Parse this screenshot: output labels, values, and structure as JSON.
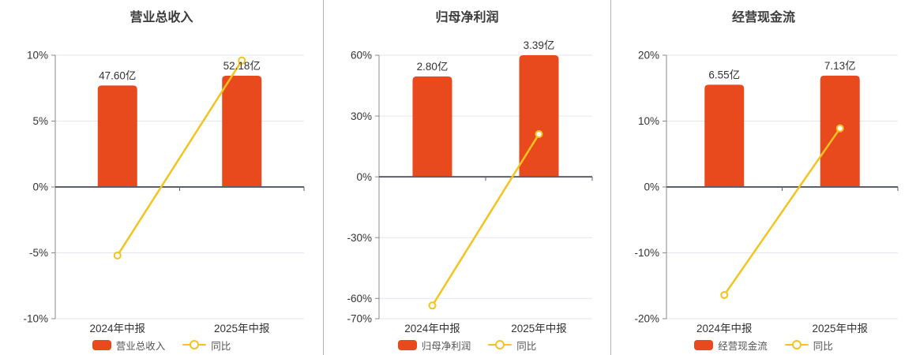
{
  "page": {
    "background": "#ffffff"
  },
  "colors": {
    "bar": "#e8491d",
    "line": "#f5c31d",
    "grid": "#e3e6ef",
    "zero_axis": "#5c6066",
    "y_axis_line": "#8a8a8a",
    "tick_text": "#333333",
    "title_text": "#3b3b3b",
    "legend_text": "#555555",
    "divider": "#b3b3b3",
    "marker_fill": "#ffffff"
  },
  "chart_data": [
    {
      "type": "bar+line",
      "title": "营业总收入",
      "categories": [
        "2024年中报",
        "2025年中报"
      ],
      "bar_series": {
        "name": "营业总收入",
        "values": [
          47.6,
          52.18
        ],
        "labels": [
          "47.60亿",
          "52.18亿"
        ],
        "unit": "亿"
      },
      "line_series": {
        "name": "同比",
        "values": [
          -5.2,
          9.6
        ],
        "unit": "%"
      },
      "y_ticks": [
        10,
        5,
        0,
        -5,
        -10
      ],
      "ylim": [
        -10,
        10
      ],
      "bar_axis_max": 61.8,
      "grid": true,
      "legend_position": "bottom"
    },
    {
      "type": "bar+line",
      "title": "归母净利润",
      "categories": [
        "2024年中报",
        "2025年中报"
      ],
      "bar_series": {
        "name": "归母净利润",
        "values": [
          2.8,
          3.39
        ],
        "labels": [
          "2.80亿",
          "3.39亿"
        ],
        "unit": "亿"
      },
      "line_series": {
        "name": "同比",
        "values": [
          -63.5,
          21.1
        ],
        "unit": "%"
      },
      "y_ticks": [
        60,
        30,
        0,
        -30,
        -60,
        -70
      ],
      "ylim": [
        -70,
        60
      ],
      "bar_axis_max": 3.39,
      "grid": true,
      "legend_position": "bottom"
    },
    {
      "type": "bar+line",
      "title": "经营现金流",
      "categories": [
        "2024年中报",
        "2025年中报"
      ],
      "bar_series": {
        "name": "经营现金流",
        "values": [
          6.55,
          7.13
        ],
        "labels": [
          "6.55亿",
          "7.13亿"
        ],
        "unit": "亿"
      },
      "line_series": {
        "name": "同比",
        "values": [
          -16.4,
          8.9
        ],
        "unit": "%"
      },
      "y_ticks": [
        20,
        10,
        0,
        -10,
        -20
      ],
      "ylim": [
        -20,
        20
      ],
      "bar_axis_max": 8.44,
      "grid": true,
      "legend_position": "bottom"
    }
  ]
}
